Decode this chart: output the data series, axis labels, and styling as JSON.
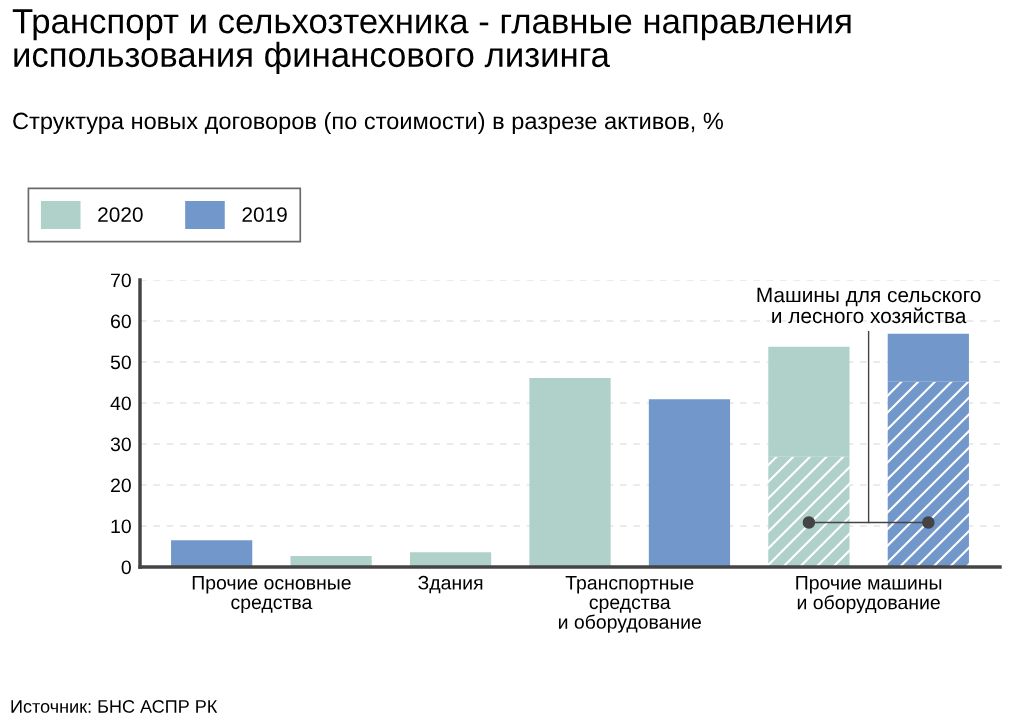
{
  "chart_data": {
    "type": "bar",
    "title": "Транспорт и сельхозтехника - главные направления\nиспользования финансового лизинга",
    "subtitle": "Структура новых договоров (по стоимости) в разрезе активов, %",
    "categories": [
      "Прочие основные\nсредства",
      null,
      "Здания",
      "Транспортные\nсредства\nи оборудование",
      null,
      "Прочие машины\nи оборудование",
      null
    ],
    "stacked": true,
    "series": [
      {
        "color": "#afd1c9",
        "values": [
          null,
          null,
          null,
          null,
          null,
          26.9,
          null
        ]
      },
      {
        "name": "2020",
        "color": "#afd1c9",
        "values": [
          null,
          2.7,
          3.6,
          46.1,
          null,
          26.8,
          null
        ]
      },
      {
        "color": "#7297cb",
        "values": [
          null,
          null,
          null,
          null,
          null,
          null,
          45.2
        ]
      },
      {
        "name": "2019",
        "color": "#7297cb",
        "values": [
          6.5,
          null,
          null,
          null,
          40.9,
          null,
          11.7
        ]
      }
    ],
    "ylim": [
      0,
      70
    ],
    "yticks": [
      0,
      10,
      20,
      30,
      40,
      50,
      60,
      70
    ],
    "grid": "y",
    "legend": "top left",
    "annotations": [
      "Машины для сельского\nи лесного хозяйства",
      "Источник: БНС АСПР РК"
    ]
  }
}
